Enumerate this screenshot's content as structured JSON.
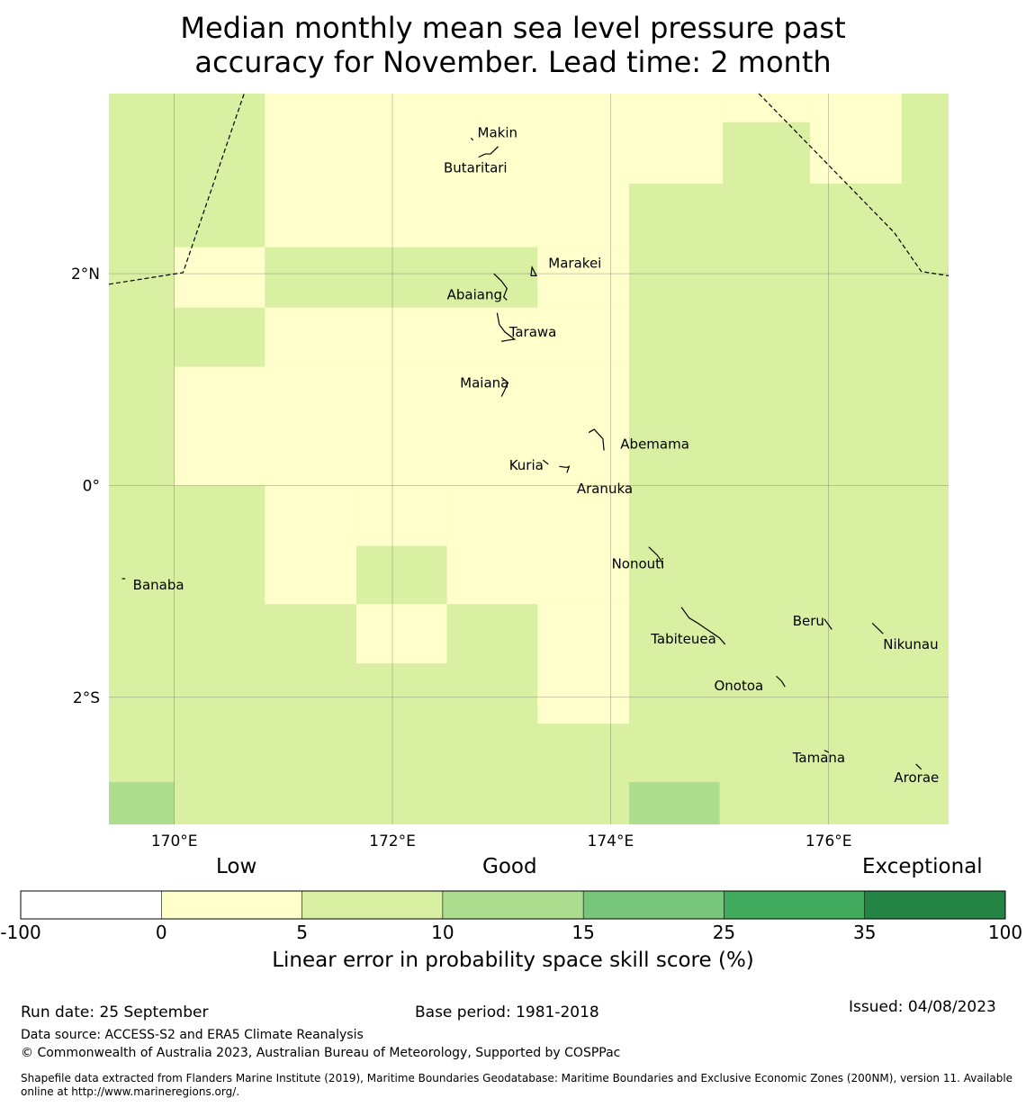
{
  "title": {
    "line1": "Median monthly mean sea level pressure past",
    "line2": "accuracy for November. Lead time: 2 month"
  },
  "map": {
    "lon_range": [
      169.4,
      177.1
    ],
    "lat_range": [
      -3.2,
      3.7
    ],
    "lon_ticks": [
      {
        "value": 170,
        "label": "170°E"
      },
      {
        "value": 172,
        "label": "172°E"
      },
      {
        "value": 174,
        "label": "174°E"
      },
      {
        "value": 176,
        "label": "176°E"
      }
    ],
    "lat_ticks": [
      {
        "value": 2,
        "label": "2°N"
      },
      {
        "value": 0,
        "label": "0°"
      },
      {
        "value": -2,
        "label": "2°S"
      }
    ],
    "colors": {
      "cat_0_5": "#ffffcc",
      "cat_5_10": "#d9f0a3",
      "cat_10_15": "#addd8e"
    },
    "base_category": "cat_5_10",
    "cells": [
      {
        "lon": [
          170.83,
          174.17
        ],
        "lat": [
          3.7,
          2.25
        ],
        "cat": "cat_0_5"
      },
      {
        "lon": [
          174.17,
          175.03
        ],
        "lat": [
          3.7,
          2.85
        ],
        "cat": "cat_0_5"
      },
      {
        "lon": [
          175.03,
          175.83
        ],
        "lat": [
          3.7,
          3.43
        ],
        "cat": "cat_0_5"
      },
      {
        "lon": [
          175.83,
          176.67
        ],
        "lat": [
          3.7,
          2.85
        ],
        "cat": "cat_0_5"
      },
      {
        "lon": [
          170.0,
          170.83
        ],
        "lat": [
          2.25,
          1.68
        ],
        "cat": "cat_0_5"
      },
      {
        "lon": [
          173.33,
          174.17
        ],
        "lat": [
          2.25,
          1.68
        ],
        "cat": "cat_0_5"
      },
      {
        "lon": [
          170.83,
          174.17
        ],
        "lat": [
          1.68,
          1.12
        ],
        "cat": "cat_0_5"
      },
      {
        "lon": [
          170.0,
          174.17
        ],
        "lat": [
          1.12,
          0.0
        ],
        "cat": "cat_0_5"
      },
      {
        "lon": [
          170.83,
          171.67
        ],
        "lat": [
          0.0,
          -1.12
        ],
        "cat": "cat_0_5"
      },
      {
        "lon": [
          171.67,
          172.5
        ],
        "lat": [
          0.0,
          -0.57
        ],
        "cat": "cat_0_5"
      },
      {
        "lon": [
          172.5,
          174.17
        ],
        "lat": [
          0.0,
          -1.12
        ],
        "cat": "cat_0_5"
      },
      {
        "lon": [
          171.67,
          172.5
        ],
        "lat": [
          -1.12,
          -1.68
        ],
        "cat": "cat_0_5"
      },
      {
        "lon": [
          173.33,
          174.17
        ],
        "lat": [
          -1.12,
          -2.25
        ],
        "cat": "cat_0_5"
      },
      {
        "lon": [
          169.4,
          170.0
        ],
        "lat": [
          -2.8,
          -3.2
        ],
        "cat": "cat_10_15"
      },
      {
        "lon": [
          174.17,
          175.0
        ],
        "lat": [
          -2.8,
          -3.2
        ],
        "cat": "cat_10_15"
      }
    ],
    "eez_lines": [
      [
        [
          169.4,
          1.9
        ],
        [
          170.08,
          2.01
        ],
        [
          170.64,
          3.7
        ]
      ],
      [
        [
          175.36,
          3.7
        ],
        [
          176.6,
          2.39
        ],
        [
          176.85,
          2.02
        ],
        [
          177.1,
          1.98
        ]
      ]
    ],
    "islands": [
      {
        "name": "Makin",
        "label": "Makin",
        "lon": 172.95,
        "lat": 3.27,
        "label_lon": 172.78,
        "label_lat": 3.33,
        "outline": [
          [
            172.72,
            3.28
          ],
          [
            172.74,
            3.26
          ]
        ]
      },
      {
        "name": "Butaritari",
        "label": "Butaritari",
        "lon": 172.95,
        "lat": 3.1,
        "label_lon": 172.47,
        "label_lat": 3.0,
        "outline": [
          [
            172.79,
            3.1
          ],
          [
            172.85,
            3.13
          ],
          [
            172.9,
            3.13
          ],
          [
            172.97,
            3.2
          ]
        ]
      },
      {
        "name": "Marakei",
        "label": "Marakei",
        "lon": 173.28,
        "lat": 2.0,
        "label_lon": 173.43,
        "label_lat": 2.1,
        "outline": [
          [
            173.27,
            1.98
          ],
          [
            173.28,
            2.06
          ],
          [
            173.32,
            1.98
          ],
          [
            173.27,
            1.98
          ]
        ]
      },
      {
        "name": "Abaiang",
        "label": "Abaiang",
        "lon": 172.95,
        "lat": 1.85,
        "label_lon": 172.5,
        "label_lat": 1.8,
        "outline": [
          [
            172.93,
            2.0
          ],
          [
            173.0,
            1.93
          ],
          [
            173.05,
            1.86
          ],
          [
            173.02,
            1.78
          ],
          [
            173.05,
            1.75
          ]
        ]
      },
      {
        "name": "Tarawa",
        "label": "Tarawa",
        "lon": 173.0,
        "lat": 1.4,
        "label_lon": 173.07,
        "label_lat": 1.45,
        "outline": [
          [
            172.96,
            1.63
          ],
          [
            172.98,
            1.52
          ],
          [
            173.03,
            1.45
          ],
          [
            173.12,
            1.38
          ],
          [
            173.05,
            1.37
          ],
          [
            173.0,
            1.36
          ]
        ]
      },
      {
        "name": "Maiana",
        "label": "Maiana",
        "lon": 173.0,
        "lat": 0.92,
        "label_lon": 172.62,
        "label_lat": 0.97,
        "outline": [
          [
            173.0,
            1.02
          ],
          [
            173.06,
            0.97
          ],
          [
            173.02,
            0.88
          ],
          [
            173.0,
            0.84
          ]
        ]
      },
      {
        "name": "Abemama",
        "label": "Abemama",
        "lon": 173.9,
        "lat": 0.42,
        "label_lon": 174.09,
        "label_lat": 0.39,
        "outline": [
          [
            173.8,
            0.5
          ],
          [
            173.85,
            0.53
          ],
          [
            173.93,
            0.44
          ],
          [
            173.94,
            0.33
          ]
        ]
      },
      {
        "name": "Kuria",
        "label": "Kuria",
        "lon": 173.42,
        "lat": 0.22,
        "label_lon": 173.07,
        "label_lat": 0.19,
        "outline": [
          [
            173.38,
            0.24
          ],
          [
            173.43,
            0.2
          ]
        ]
      },
      {
        "name": "Aranuka",
        "label": "Aranuka",
        "lon": 173.6,
        "lat": 0.17,
        "label_lon": 173.69,
        "label_lat": -0.03,
        "outline": [
          [
            173.53,
            0.18
          ],
          [
            173.6,
            0.17
          ],
          [
            173.62,
            0.18
          ],
          [
            173.6,
            0.12
          ]
        ]
      },
      {
        "name": "Nonouti",
        "label": "Nonouti",
        "lon": 174.4,
        "lat": -0.65,
        "label_lon": 174.01,
        "label_lat": -0.74,
        "outline": [
          [
            174.35,
            -0.58
          ],
          [
            174.43,
            -0.66
          ],
          [
            174.47,
            -0.72
          ],
          [
            174.48,
            -0.78
          ]
        ]
      },
      {
        "name": "Tabiteuea",
        "label": "Tabiteuea",
        "lon": 174.9,
        "lat": -1.4,
        "label_lon": 174.37,
        "label_lat": -1.45,
        "outline": [
          [
            174.65,
            -1.15
          ],
          [
            174.72,
            -1.25
          ],
          [
            174.8,
            -1.3
          ],
          [
            174.9,
            -1.37
          ],
          [
            175.0,
            -1.44
          ],
          [
            175.05,
            -1.5
          ]
        ]
      },
      {
        "name": "Beru",
        "label": "Beru",
        "lon": 175.98,
        "lat": -1.3,
        "label_lon": 175.67,
        "label_lat": -1.28,
        "outline": [
          [
            175.96,
            -1.26
          ],
          [
            176.03,
            -1.36
          ]
        ]
      },
      {
        "name": "Nikunau",
        "label": "Nikunau",
        "lon": 176.45,
        "lat": -1.38,
        "label_lon": 176.5,
        "label_lat": -1.5,
        "outline": [
          [
            176.4,
            -1.3
          ],
          [
            176.46,
            -1.36
          ],
          [
            176.5,
            -1.4
          ]
        ]
      },
      {
        "name": "Onotoa",
        "label": "Onotoa",
        "lon": 175.58,
        "lat": -1.87,
        "label_lon": 174.95,
        "label_lat": -1.89,
        "outline": [
          [
            175.52,
            -1.8
          ],
          [
            175.57,
            -1.85
          ],
          [
            175.6,
            -1.9
          ]
        ]
      },
      {
        "name": "Tamana",
        "label": "Tamana",
        "lon": 175.98,
        "lat": -2.5,
        "label_lon": 175.67,
        "label_lat": -2.57,
        "outline": [
          [
            175.96,
            -2.5
          ],
          [
            176.0,
            -2.52
          ]
        ]
      },
      {
        "name": "Arorae",
        "label": "Arorae",
        "lon": 176.83,
        "lat": -2.65,
        "label_lon": 176.6,
        "label_lat": -2.76,
        "outline": [
          [
            176.8,
            -2.63
          ],
          [
            176.85,
            -2.68
          ]
        ]
      },
      {
        "name": "Banaba",
        "label": "Banaba",
        "lon": 169.53,
        "lat": -0.88,
        "label_lon": 169.62,
        "label_lat": -0.94,
        "outline": [
          [
            169.52,
            -0.88
          ],
          [
            169.55,
            -0.88
          ]
        ]
      }
    ]
  },
  "colorbar": {
    "category_labels": {
      "low": "Low",
      "good": "Good",
      "exceptional": "Exceptional"
    },
    "bins": [
      {
        "from": "-100",
        "to": "0",
        "color": "#ffffff"
      },
      {
        "from": "0",
        "to": "5",
        "color": "#ffffcc"
      },
      {
        "from": "5",
        "to": "10",
        "color": "#d9f0a3"
      },
      {
        "from": "10",
        "to": "15",
        "color": "#addd8e"
      },
      {
        "from": "15",
        "to": "25",
        "color": "#78c679"
      },
      {
        "from": "25",
        "to": "35",
        "color": "#41ab5d"
      },
      {
        "from": "35",
        "to": "100",
        "color": "#238443"
      }
    ],
    "tick_labels": [
      "-100",
      "0",
      "5",
      "10",
      "15",
      "25",
      "35",
      "100"
    ],
    "axis_label": "Linear error in probability space skill score (%)"
  },
  "footer": {
    "run_date": "Run date: 25 September",
    "base_period": "Base period: 1981-2018",
    "issued": "Issued: 04/08/2023",
    "data_source": "Data source: ACCESS-S2 and ERA5 Climate Reanalysis",
    "copyright": "© Commonwealth of Australia 2023, Australian Bureau of Meteorology, Supported by COSPPac",
    "shapefile": "Shapefile data extracted from Flanders Marine Institute (2019), Maritime Boundaries Geodatabase: Maritime Boundaries and Exclusive Economic Zones (200NM), version 11. Available online at http://www.marineregions.org/."
  }
}
